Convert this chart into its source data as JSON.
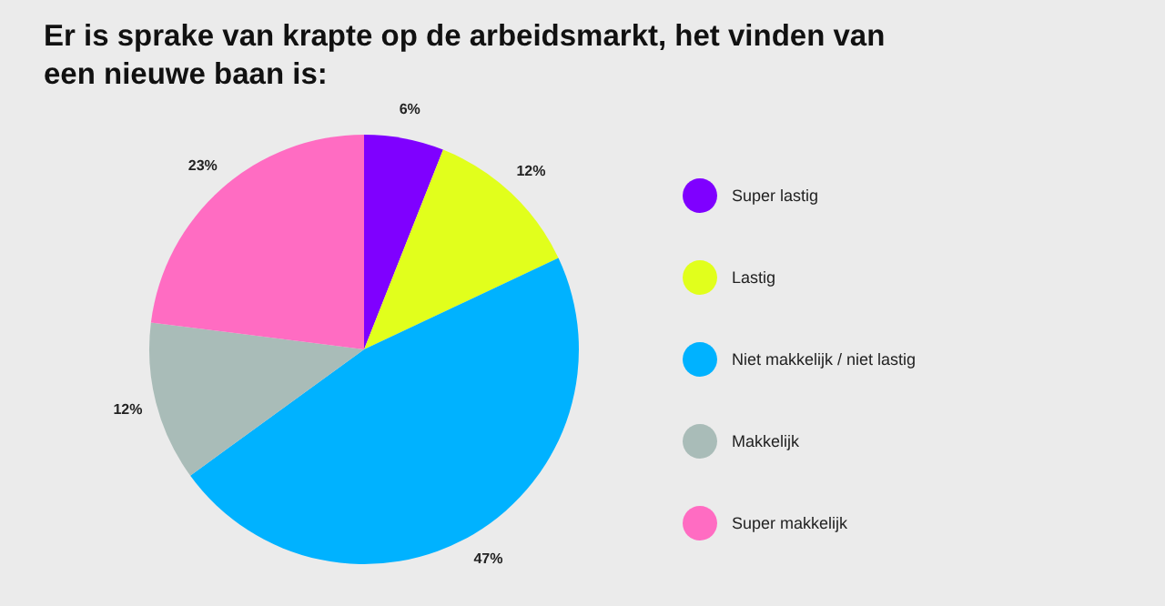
{
  "chart_data": {
    "type": "pie",
    "title": "Er is sprake van krapte op de arbeidsmarkt, het vinden van een nieuwe baan is:",
    "categories": [
      "Super lastig",
      "Lastig",
      "Niet makkelijk / niet lastig",
      "Makkelijk",
      "Super makkelijk"
    ],
    "values": [
      6,
      12,
      47,
      12,
      23
    ],
    "value_labels": [
      "6%",
      "12%",
      "47%",
      "12%",
      "23%"
    ],
    "colors": [
      "#7f00ff",
      "#e1ff1c",
      "#00b2ff",
      "#a9bcb8",
      "#ff6cc2"
    ],
    "legend": "right"
  }
}
